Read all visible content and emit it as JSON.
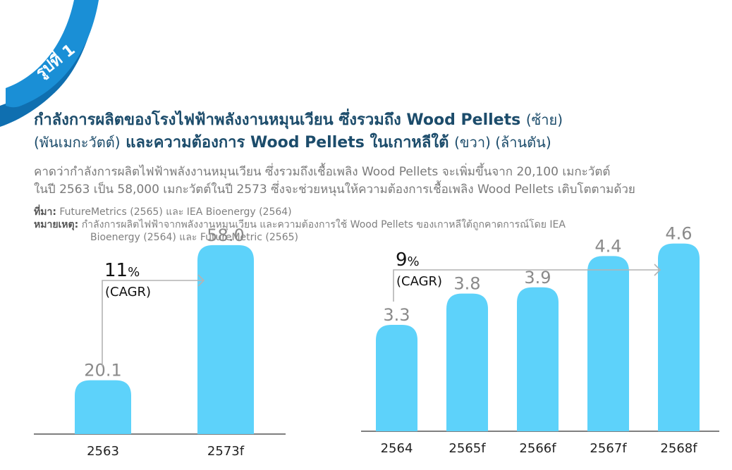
{
  "badge": "รูปที่ 1",
  "title": {
    "line1_bold": "กำลังการผลิตของโรงไฟฟ้าพลังงานหมุนเวียน ซึ่งรวมถึง Wood Pellets",
    "line1_light": "(ซ้าย)",
    "line2_light_a": "(พันเมกะวัตต์)",
    "line2_bold": "และความต้องการ Wood Pellets ในเกาหลีใต้",
    "line2_light_b": "(ขวา) (ล้านตัน)"
  },
  "subtitle": {
    "line1": "คาดว่ากำลังการผลิตไฟฟ้าพลังงานหมุนเวียน ซึ่งรวมถึงเชื้อเพลิง Wood Pellets จะเพิ่มขึ้นจาก 20,100 เมกะวัตต์",
    "line2": "ในปี 2563 เป็น 58,000 เมกะวัตต์ในปี 2573 ซึ่งจะช่วยหนุนให้ความต้องการเชื้อเพลิง Wood Pellets เติบโตตามด้วย"
  },
  "source": {
    "label": "ที่มา:",
    "text": "FutureMetrics (2565) และ IEA Bioenergy (2564)"
  },
  "note": {
    "label": "หมายเหตุ:",
    "line1": "กำลังการผลิตไฟฟ้าจากพลังงานหมุนเวียน และความต้องการใช้ Wood Pellets ของเกาหลีใต้ถูกคาดการณ์โดย IEA",
    "line2": "Bioenergy (2564) และ FutureMetric (2565)"
  },
  "colors": {
    "bar": "#5dd2fa",
    "title": "#1c4c6b",
    "ribbon": "#1a8fd6",
    "arrow": "#b3b3b3"
  },
  "chart_data": [
    {
      "type": "bar",
      "categories": [
        "2563",
        "2573f"
      ],
      "values": [
        20.1,
        58.0
      ],
      "value_labels": [
        "20.1",
        "58.0"
      ],
      "growth": {
        "value": "11",
        "unit": "%",
        "label": "(CAGR)"
      }
    },
    {
      "type": "bar",
      "categories": [
        "2564",
        "2565f",
        "2566f",
        "2567f",
        "2568f"
      ],
      "values": [
        3.3,
        3.8,
        3.9,
        4.4,
        4.6
      ],
      "value_labels": [
        "3.3",
        "3.8",
        "3.9",
        "4.4",
        "4.6"
      ],
      "growth": {
        "value": "9",
        "unit": "%",
        "label": "(CAGR)"
      }
    }
  ]
}
